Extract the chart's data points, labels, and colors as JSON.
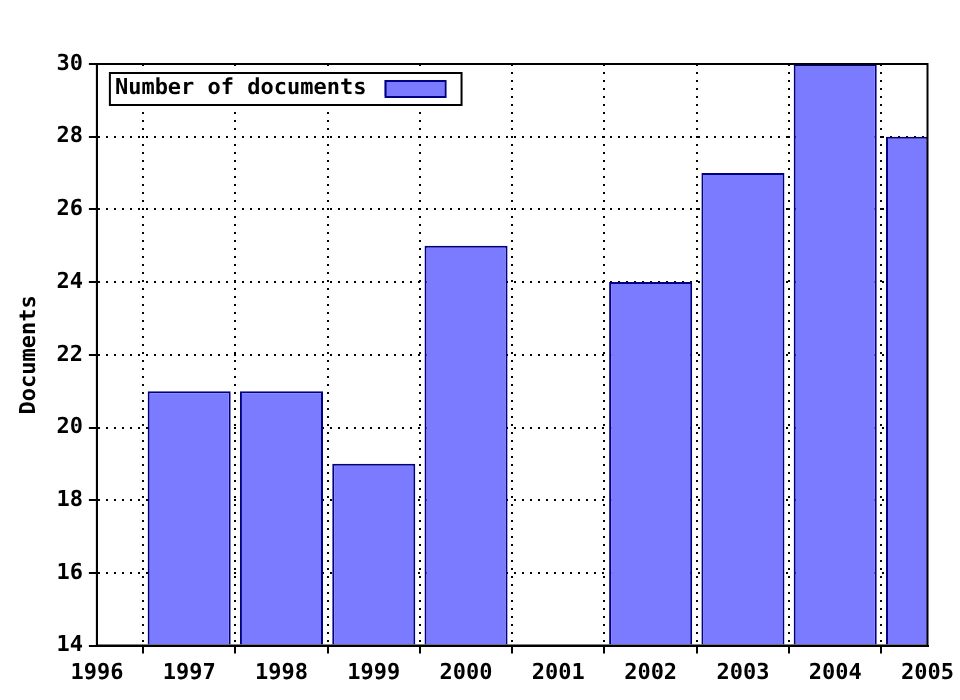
{
  "chart_data": {
    "type": "bar",
    "ylabel": "Documents",
    "x": [
      1997,
      1998,
      1999,
      2000,
      2001,
      2002,
      2003,
      2004,
      2005
    ],
    "series": [
      {
        "name": "Number of documents",
        "color": "#7b7bff",
        "values": [
          21,
          21,
          19,
          25,
          null,
          24,
          27,
          30,
          28
        ]
      }
    ],
    "xlim": [
      1996,
      2005
    ],
    "xticks": [
      1996,
      1997,
      1998,
      1999,
      2000,
      2001,
      2002,
      2003,
      2004,
      2005
    ],
    "ylim": [
      14,
      30
    ],
    "yticks": [
      14,
      16,
      18,
      20,
      22,
      24,
      26,
      28,
      30
    ],
    "grid": true,
    "legend": "top left"
  }
}
